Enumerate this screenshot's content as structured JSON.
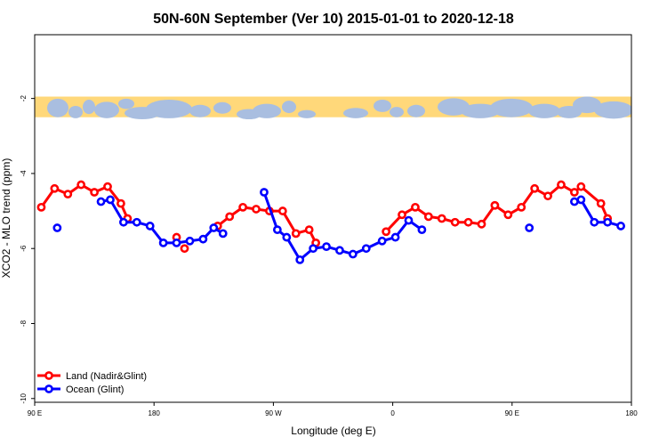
{
  "chart_data": {
    "type": "line",
    "title": "50N-60N September (Ver 10)   2015-01-01 to 2020-12-18",
    "xlabel": "Longitude (deg E)",
    "ylabel": "XCO2 - MLO trend (ppm)",
    "xlim": [
      90,
      540
    ],
    "ylim": [
      -10.1,
      -0.3
    ],
    "x_ticks": [
      {
        "value": 90,
        "label": "90 E"
      },
      {
        "value": 180,
        "label": "180"
      },
      {
        "value": 270,
        "label": "90 W"
      },
      {
        "value": 360,
        "label": "0"
      },
      {
        "value": 450,
        "label": "90 E"
      },
      {
        "value": 540,
        "label": "180"
      }
    ],
    "y_ticks": [
      {
        "value": -2,
        "label": "-2"
      },
      {
        "value": -4,
        "label": "-4"
      },
      {
        "value": -6,
        "label": "-6"
      },
      {
        "value": -8,
        "label": "-8"
      },
      {
        "value": -10,
        "label": "-10"
      }
    ],
    "grid": false,
    "legend_position": "bottom-left",
    "map_strip": {
      "y_top": -1.95,
      "y_bottom": -2.5,
      "land_color": "#FFD87A",
      "ocean_color": "#A9BEE0"
    },
    "series": [
      {
        "name": "Land (Nadir&Glint)",
        "color": "#FF0000",
        "segments": [
          [
            [
              95,
              -4.9
            ],
            [
              105,
              -4.4
            ],
            [
              115,
              -4.55
            ],
            [
              125,
              -4.3
            ],
            [
              135,
              -4.5
            ],
            [
              145,
              -4.35
            ],
            [
              155,
              -4.8
            ],
            [
              160,
              -5.2
            ]
          ],
          [
            [
              197,
              -5.7
            ]
          ],
          [
            [
              203,
              -6.0
            ]
          ],
          [
            [
              228,
              -5.4
            ],
            [
              237,
              -5.15
            ],
            [
              247,
              -4.9
            ],
            [
              257,
              -4.95
            ],
            [
              267,
              -5.0
            ],
            [
              277,
              -5.0
            ],
            [
              287,
              -5.6
            ],
            [
              297,
              -5.5
            ],
            [
              302,
              -5.85
            ]
          ],
          [
            [
              355,
              -5.55
            ],
            [
              367,
              -5.1
            ],
            [
              377,
              -4.9
            ],
            [
              387,
              -5.15
            ],
            [
              397,
              -5.2
            ],
            [
              407,
              -5.3
            ],
            [
              417,
              -5.3
            ],
            [
              427,
              -5.35
            ],
            [
              437,
              -4.85
            ],
            [
              447,
              -5.1
            ],
            [
              457,
              -4.9
            ],
            [
              467,
              -4.4
            ],
            [
              477,
              -4.6
            ],
            [
              487,
              -4.3
            ],
            [
              497,
              -4.5
            ],
            [
              502,
              -4.35
            ],
            [
              517,
              -4.8
            ],
            [
              522,
              -5.2
            ]
          ]
        ]
      },
      {
        "name": "Ocean (Glint)",
        "color": "#0000FF",
        "segments": [
          [
            [
              107,
              -5.45
            ]
          ],
          [
            [
              140,
              -4.75
            ],
            [
              147,
              -4.7
            ],
            [
              157,
              -5.3
            ],
            [
              167,
              -5.3
            ],
            [
              177,
              -5.4
            ],
            [
              187,
              -5.85
            ],
            [
              197,
              -5.85
            ],
            [
              207,
              -5.8
            ],
            [
              217,
              -5.75
            ],
            [
              225,
              -5.45
            ],
            [
              232,
              -5.6
            ]
          ],
          [
            [
              263,
              -4.5
            ],
            [
              273,
              -5.5
            ],
            [
              280,
              -5.7
            ],
            [
              290,
              -6.3
            ],
            [
              300,
              -6.0
            ],
            [
              310,
              -5.95
            ],
            [
              320,
              -6.05
            ],
            [
              330,
              -6.15
            ],
            [
              340,
              -6.0
            ],
            [
              352,
              -5.8
            ],
            [
              362,
              -5.7
            ],
            [
              372,
              -5.25
            ],
            [
              382,
              -5.5
            ]
          ],
          [
            [
              463,
              -5.45
            ]
          ],
          [
            [
              497,
              -4.75
            ],
            [
              502,
              -4.7
            ],
            [
              512,
              -5.3
            ],
            [
              522,
              -5.3
            ],
            [
              532,
              -5.4
            ]
          ]
        ]
      }
    ]
  }
}
